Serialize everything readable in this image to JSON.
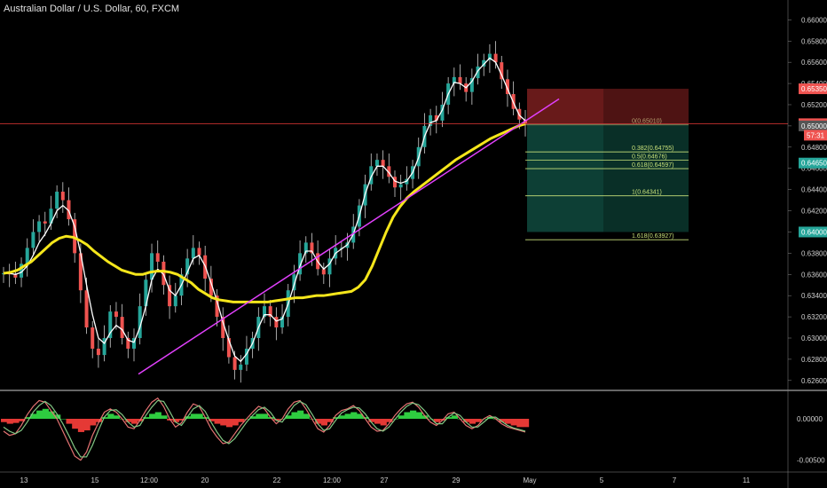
{
  "title": "Australian Dollar / U.S. Dollar, 60, FXCM",
  "colors": {
    "background": "#000000",
    "up_candle": "#26a69a",
    "down_candle": "#ef5350",
    "wick": "#cfcfcf",
    "ma_fast": "#ffffff",
    "ma_slow": "#f5e61b",
    "trendline": "#e040fb",
    "price_line": "#e53935",
    "stop_zone": "#7a1f1f",
    "target_zone": "#0f4a3e",
    "fib_lines": "#c8e07a",
    "osc_green": "#2ecc40",
    "osc_red": "#e53935",
    "osc_line_a": "#e57373",
    "osc_line_b": "#81c784"
  },
  "chart_data": [
    {
      "type": "line",
      "title": "Australian Dollar / U.S. Dollar, 60, FXCM",
      "x_tick_labels": [
        "13",
        "15",
        "12:00",
        "20",
        "22",
        "12:00",
        "27",
        "29",
        "May",
        "5",
        "7",
        "11"
      ],
      "y_tick_labels": [
        "0.66000",
        "0.65800",
        "0.65600",
        "0.65400",
        "0.65200",
        "0.65000",
        "0.64800",
        "0.64600",
        "0.64400",
        "0.64200",
        "0.64000",
        "0.63800",
        "0.63600",
        "0.63400",
        "0.63200",
        "0.63000",
        "0.62800",
        "0.62600"
      ],
      "ylim": [
        0.6254,
        0.6612
      ],
      "grid": false,
      "price_labels": [
        {
          "value": 0.6535,
          "text": "0.65350",
          "color": "#ef5350"
        },
        {
          "value": 0.65021,
          "text": "0.65021",
          "color": "#ef5350"
        },
        {
          "value": 0.65,
          "text": "0.65000",
          "color": "#555555"
        },
        {
          "value": 0.6465,
          "text": "0.64650",
          "color": "#26a69a"
        },
        {
          "value": 0.64,
          "text": "0.64000",
          "color": "#26a69a"
        }
      ],
      "countdown": "57:31",
      "close_series": [
        0.6361,
        0.636,
        0.6357,
        0.637,
        0.6385,
        0.64,
        0.641,
        0.6408,
        0.6422,
        0.6438,
        0.643,
        0.6412,
        0.638,
        0.6345,
        0.631,
        0.629,
        0.6284,
        0.63,
        0.6325,
        0.632,
        0.63,
        0.629,
        0.63,
        0.633,
        0.6355,
        0.638,
        0.6372,
        0.635,
        0.633,
        0.634,
        0.636,
        0.6375,
        0.6385,
        0.6378,
        0.6356,
        0.634,
        0.632,
        0.63,
        0.6282,
        0.627,
        0.6275,
        0.629,
        0.63,
        0.632,
        0.633,
        0.632,
        0.631,
        0.632,
        0.6345,
        0.636,
        0.638,
        0.639,
        0.638,
        0.6365,
        0.636,
        0.6375,
        0.6385,
        0.6385,
        0.639,
        0.6405,
        0.6425,
        0.6445,
        0.6462,
        0.6468,
        0.6462,
        0.6452,
        0.6442,
        0.6445,
        0.645,
        0.6462,
        0.648,
        0.65,
        0.651,
        0.6505,
        0.652,
        0.654,
        0.6546,
        0.654,
        0.6532,
        0.6545,
        0.6556,
        0.6562,
        0.6568,
        0.656,
        0.6544,
        0.653,
        0.6516,
        0.6506,
        0.6502
      ],
      "series": [
        {
          "values": [
            0.6361,
            0.6361,
            0.636,
            0.6362,
            0.6368,
            0.6378,
            0.639,
            0.6398,
            0.6408,
            0.642,
            0.6425,
            0.642,
            0.6405,
            0.638,
            0.635,
            0.6322,
            0.63,
            0.6295,
            0.6305,
            0.6312,
            0.6308,
            0.6298,
            0.6296,
            0.631,
            0.633,
            0.6355,
            0.6365,
            0.636,
            0.6345,
            0.634,
            0.635,
            0.6362,
            0.6375,
            0.6378,
            0.6368,
            0.6352,
            0.6335,
            0.6315,
            0.6298,
            0.6283,
            0.6278,
            0.6285,
            0.6295,
            0.631,
            0.6322,
            0.6322,
            0.6316,
            0.6318,
            0.6332,
            0.635,
            0.6368,
            0.6382,
            0.6382,
            0.6372,
            0.6365,
            0.637,
            0.638,
            0.6384,
            0.6388,
            0.6398,
            0.6415,
            0.6436,
            0.6452,
            0.6462,
            0.6462,
            0.6456,
            0.6448,
            0.6446,
            0.6448,
            0.6456,
            0.647,
            0.649,
            0.6503,
            0.6505,
            0.6515,
            0.653,
            0.6541,
            0.654,
            0.6536,
            0.6542,
            0.6552,
            0.6558,
            0.6564,
            0.656,
            0.6548,
            0.6535,
            0.6522,
            0.651,
            0.6505
          ]
        },
        {
          "values": [
            0.6361,
            0.6362,
            0.6364,
            0.6368,
            0.6372,
            0.6378,
            0.6384,
            0.639,
            0.6394,
            0.6396,
            0.6395,
            0.6392,
            0.6388,
            0.6382,
            0.6377,
            0.6372,
            0.6368,
            0.6364,
            0.6362,
            0.636,
            0.636,
            0.6362,
            0.6363,
            0.6363,
            0.6362,
            0.636,
            0.6356,
            0.6352,
            0.6346,
            0.6342,
            0.6338,
            0.6336,
            0.6335,
            0.6334,
            0.6334,
            0.6334,
            0.6334,
            0.6334,
            0.6334,
            0.6335,
            0.6336,
            0.6337,
            0.6338,
            0.6338,
            0.6339,
            0.634,
            0.634,
            0.6341,
            0.6342,
            0.6343,
            0.6344,
            0.6348,
            0.6355,
            0.6368,
            0.6384,
            0.64,
            0.6414,
            0.6424,
            0.6432,
            0.6438,
            0.6443,
            0.6448,
            0.6453,
            0.6458,
            0.6463,
            0.6468,
            0.6472,
            0.6476,
            0.648,
            0.6484,
            0.6488,
            0.6491,
            0.6494,
            0.6497,
            0.65,
            0.6502
          ]
        }
      ],
      "trendline": {
        "from": [
          0.6266,
          0.6266
        ],
        "to": [
          0.6512,
          0.6512
        ]
      },
      "position_box": {
        "entry": 0.6502,
        "stop": 0.6535,
        "target": 0.64
      },
      "fib_levels": [
        {
          "label": "0(0.65010)",
          "value": 0.6501
        },
        {
          "label": "0.382(0.64755)",
          "value": 0.64755
        },
        {
          "label": "0.5(0.64676)",
          "value": 0.64676
        },
        {
          "label": "0.618(0.64597)",
          "value": 0.64597
        },
        {
          "label": "1(0.64341)",
          "value": 0.64341
        },
        {
          "label": "1.618(0.63927)",
          "value": 0.63927
        }
      ]
    },
    {
      "type": "bar",
      "y_tick_labels": [
        "0.00000",
        "-0.00500"
      ],
      "ylim": [
        -0.006,
        0.003
      ],
      "histogram": [
        -0.0004,
        -0.0006,
        -0.0005,
        -0.0003,
        0.0002,
        0.0006,
        0.001,
        0.0012,
        0.0009,
        0.0005,
        0.0,
        -0.0006,
        -0.0012,
        -0.0016,
        -0.0014,
        -0.0008,
        -0.0004,
        0.0002,
        0.0006,
        0.0004,
        0.0,
        -0.0004,
        -0.0006,
        -0.0003,
        0.0002,
        0.0006,
        0.0008,
        0.0004,
        -0.0002,
        -0.0004,
        -0.0002,
        0.0003,
        0.0006,
        0.0006,
        0.0002,
        -0.0003,
        -0.0006,
        -0.0008,
        -0.001,
        -0.0008,
        -0.0004,
        0.0,
        0.0003,
        0.0006,
        0.0006,
        0.0002,
        -0.0002,
        0.0,
        0.0004,
        0.0008,
        0.001,
        0.0006,
        0.0,
        -0.0006,
        -0.0008,
        -0.0004,
        0.0002,
        0.0004,
        0.0006,
        0.0008,
        0.0006,
        0.0002,
        -0.0004,
        -0.0006,
        -0.0008,
        -0.0004,
        0.0,
        0.0004,
        0.0008,
        0.001,
        0.0008,
        0.0004,
        0.0,
        -0.0004,
        -0.0002,
        0.0002,
        0.0004,
        0.0,
        -0.0004,
        -0.0006,
        -0.0004,
        0.0,
        0.0002,
        0.0,
        -0.0004,
        -0.0006,
        -0.0008,
        -0.001,
        -0.001
      ],
      "series": [
        {
          "values": [
            -0.0015,
            -0.002,
            -0.0018,
            -0.0008,
            0.0005,
            0.0015,
            0.0022,
            0.002,
            0.001,
            0.0,
            -0.0015,
            -0.003,
            -0.0045,
            -0.005,
            -0.004,
            -0.002,
            -0.0005,
            0.0008,
            0.0012,
            0.0008,
            0.0,
            -0.001,
            -0.0012,
            -0.0002,
            0.001,
            0.002,
            0.0025,
            0.0015,
            0.0,
            -0.001,
            -0.0005,
            0.0008,
            0.0018,
            0.0015,
            0.0002,
            -0.0012,
            -0.0022,
            -0.003,
            -0.0028,
            -0.0018,
            -0.0008,
            0.0,
            0.0008,
            0.0015,
            0.0012,
            0.0002,
            -0.0006,
            0.0,
            0.0012,
            0.002,
            0.0022,
            0.0012,
            0.0,
            -0.0012,
            -0.0016,
            -0.0008,
            0.0004,
            0.001,
            0.0012,
            0.0016,
            0.001,
            0.0,
            -0.001,
            -0.0015,
            -0.0014,
            -0.0006,
            0.0004,
            0.0012,
            0.0018,
            0.002,
            0.0014,
            0.0004,
            -0.0004,
            -0.0008,
            -0.0002,
            0.0006,
            0.0008,
            0.0,
            -0.0008,
            -0.0012,
            -0.0008,
            0.0,
            0.0004,
            0.0,
            -0.0006,
            -0.001,
            -0.0012,
            -0.0014,
            -0.0016
          ]
        },
        {
          "values": [
            -0.001,
            -0.0015,
            -0.0018,
            -0.0014,
            -0.0004,
            0.0008,
            0.0016,
            0.0021,
            0.0016,
            0.0006,
            -0.0006,
            -0.002,
            -0.0035,
            -0.0046,
            -0.0046,
            -0.0032,
            -0.0014,
            0.0002,
            0.001,
            0.0011,
            0.0005,
            -0.0004,
            -0.001,
            -0.0008,
            0.0004,
            0.0014,
            0.0022,
            0.0021,
            0.0009,
            -0.0004,
            -0.0008,
            0.0002,
            0.0012,
            0.0016,
            0.0009,
            -0.0004,
            -0.0016,
            -0.0026,
            -0.003,
            -0.0024,
            -0.0014,
            -0.0004,
            0.0004,
            0.0011,
            0.0014,
            0.0008,
            -0.0002,
            -0.0004,
            0.0006,
            0.0016,
            0.0021,
            0.0017,
            0.0006,
            -0.0006,
            -0.0014,
            -0.0012,
            -0.0002,
            0.0007,
            0.0011,
            0.0014,
            0.0013,
            0.0006,
            -0.0004,
            -0.0012,
            -0.0015,
            -0.001,
            -0.0001,
            0.0008,
            0.0015,
            0.0019,
            0.0017,
            0.001,
            0.0001,
            -0.0006,
            -0.0006,
            0.0002,
            0.0007,
            0.0004,
            -0.0004,
            -0.001,
            -0.001,
            -0.0004,
            0.0002,
            0.0002,
            -0.0003,
            -0.0008,
            -0.0011,
            -0.0013,
            -0.0015
          ]
        }
      ]
    }
  ]
}
